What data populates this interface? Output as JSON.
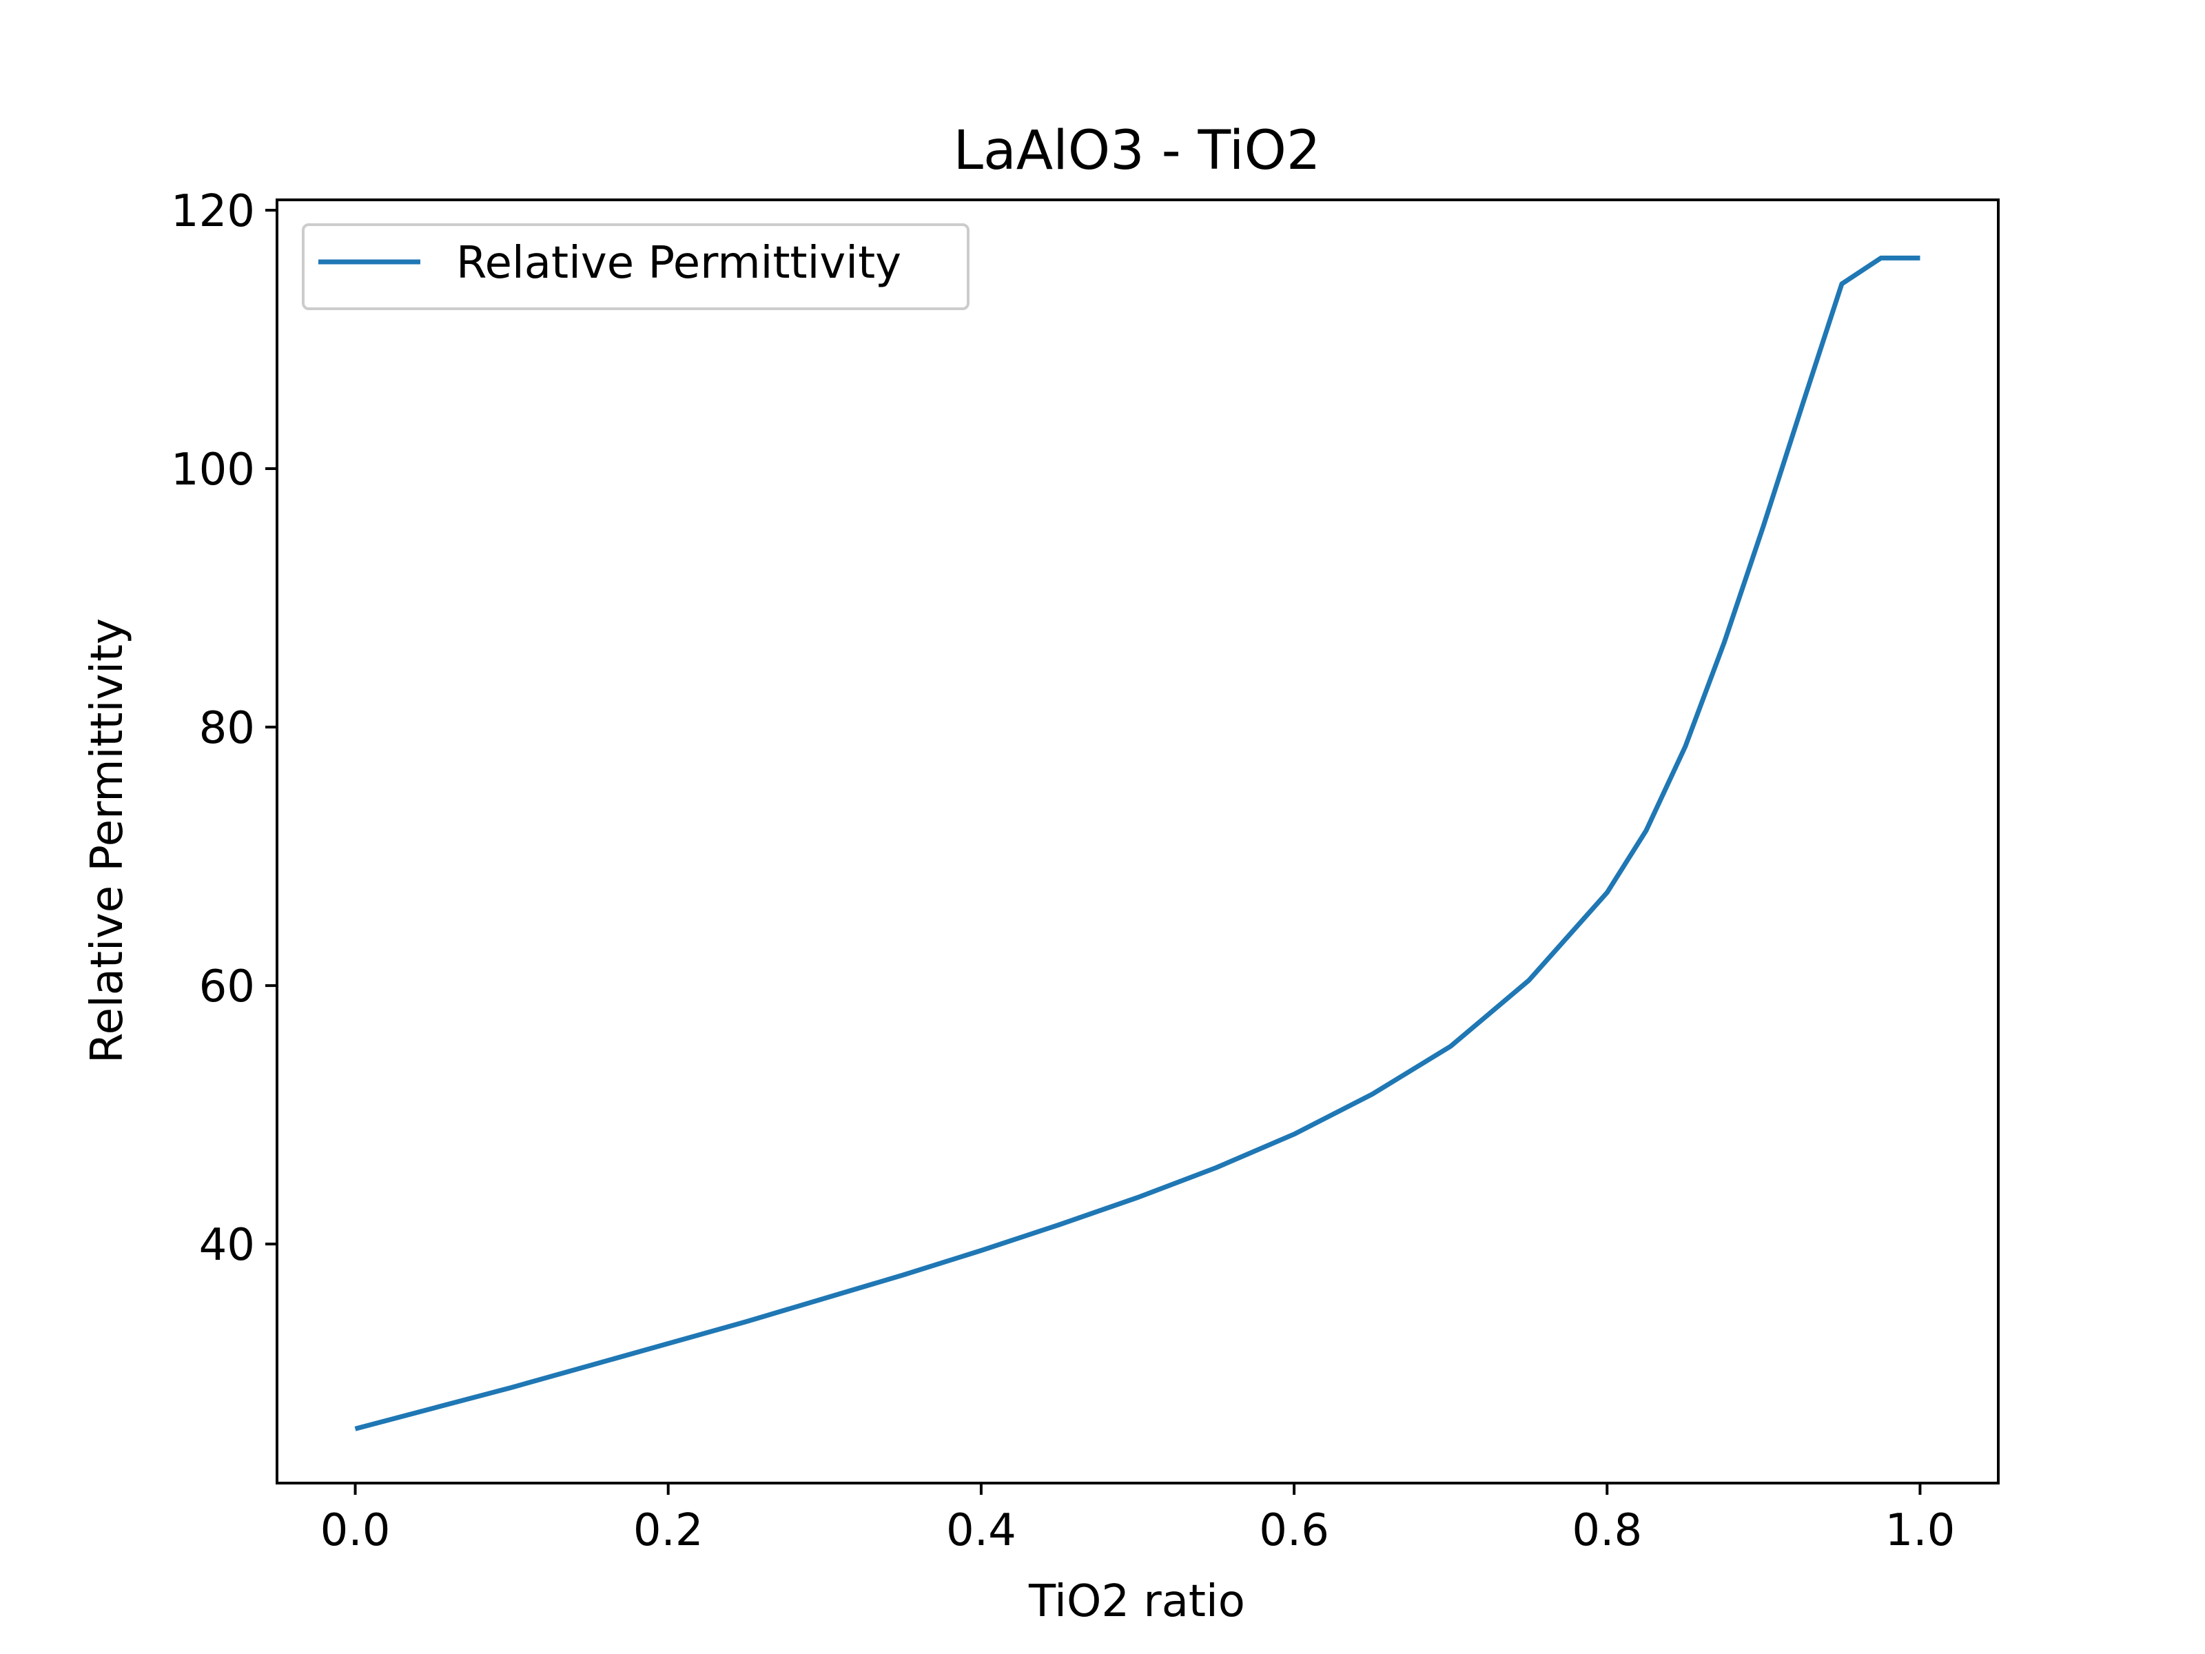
{
  "chart_data": {
    "type": "line",
    "title": "LaAlO3 - TiO2",
    "xlabel": "TiO2 ratio",
    "ylabel": "Relative Permittivity",
    "xlim": [
      -0.05,
      1.05
    ],
    "ylim": [
      21.5,
      120.8
    ],
    "xticks": [
      0.0,
      0.2,
      0.4,
      0.6,
      0.8,
      1.0
    ],
    "xtick_labels": [
      "0.0",
      "0.2",
      "0.4",
      "0.6",
      "0.8",
      "1.0"
    ],
    "yticks": [
      40,
      60,
      80,
      100,
      120
    ],
    "ytick_labels": [
      "40",
      "60",
      "80",
      "100",
      "120"
    ],
    "grid": false,
    "legend": {
      "position": "upper-left",
      "entries": [
        "Relative Permittivity"
      ]
    },
    "series": [
      {
        "name": "Relative Permittivity",
        "color": "#1f77b4",
        "x": [
          0.0,
          0.05,
          0.1,
          0.15,
          0.2,
          0.25,
          0.3,
          0.35,
          0.4,
          0.45,
          0.5,
          0.55,
          0.6,
          0.65,
          0.7,
          0.75,
          0.8,
          0.825,
          0.85,
          0.875,
          0.9,
          0.925,
          0.95,
          0.975,
          1.0
        ],
        "y": [
          25.7,
          27.3,
          28.9,
          30.6,
          32.3,
          34.0,
          35.8,
          37.6,
          39.5,
          41.5,
          43.6,
          45.9,
          48.5,
          51.6,
          55.3,
          60.4,
          67.2,
          72.0,
          78.5,
          86.6,
          95.6,
          105.0,
          114.3,
          116.3,
          116.3
        ]
      }
    ]
  }
}
